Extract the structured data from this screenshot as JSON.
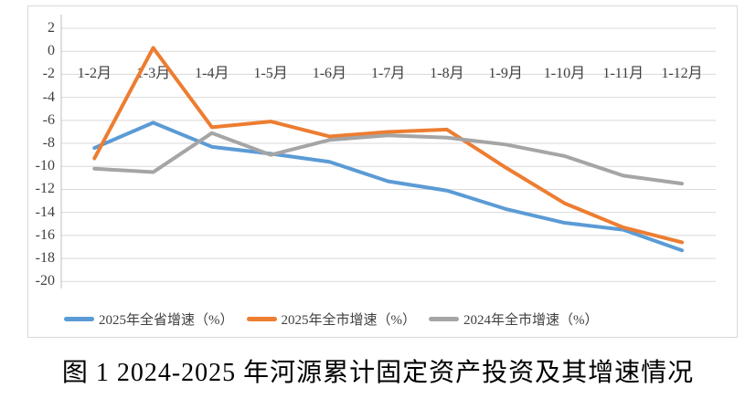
{
  "caption": "图 1 2024-2025 年河源累计固定资产投资及其增速情况",
  "chart_data": {
    "type": "line",
    "title": "图 1 2024-2025 年河源累计固定资产投资及其增速情况",
    "categories": [
      "1-2月",
      "1-3月",
      "1-4月",
      "1-5月",
      "1-6月",
      "1-7月",
      "1-8月",
      "1-9月",
      "1-10月",
      "1-11月",
      "1-12月"
    ],
    "series": [
      {
        "name": "2025年全省增速（%）",
        "color": "#5B9BD5",
        "values": [
          -8.4,
          -6.2,
          -8.3,
          -8.9,
          -9.6,
          -11.3,
          -12.1,
          -13.7,
          -14.9,
          -15.5,
          -17.3
        ]
      },
      {
        "name": "2025年全市增速（%）",
        "color": "#ED7D31",
        "values": [
          -9.3,
          0.3,
          -6.6,
          -6.1,
          -7.4,
          -7.0,
          -6.8,
          -10.1,
          -13.2,
          -15.3,
          -16.6
        ]
      },
      {
        "name": "2024年全市增速（%）",
        "color": "#A5A5A5",
        "values": [
          -10.2,
          -10.5,
          -7.1,
          -9.0,
          -7.7,
          -7.3,
          -7.5,
          -8.1,
          -9.1,
          -10.8,
          -11.5
        ]
      }
    ],
    "ylim": [
      -20,
      2
    ],
    "yticks": [
      2,
      0,
      -2,
      -4,
      -6,
      -8,
      -10,
      -12,
      -14,
      -16,
      -18,
      -20
    ],
    "xlabel": "",
    "ylabel": "",
    "grid": true,
    "legend_position": "bottom",
    "axis_color": "#bfbfbf",
    "gridline_color": "#d9d9d9"
  }
}
